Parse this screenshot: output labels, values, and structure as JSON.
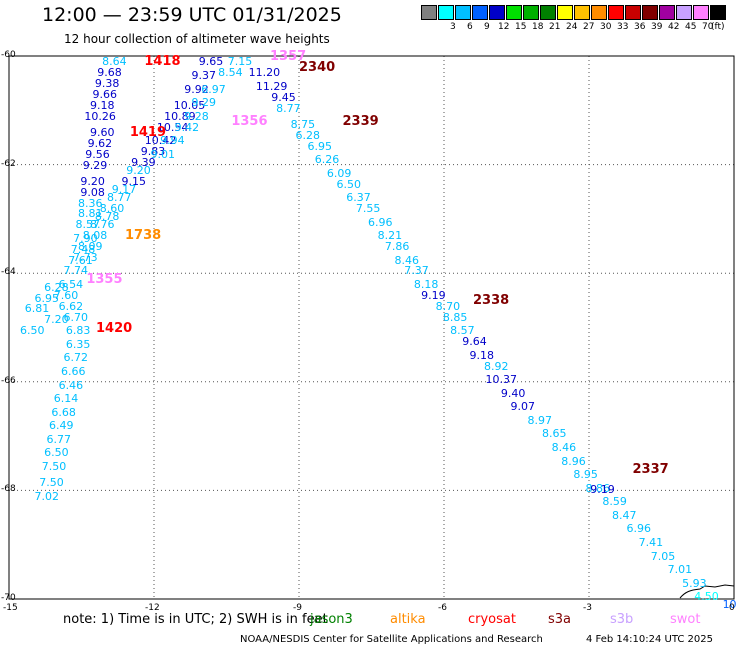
{
  "title": "12:00 — 23:59 UTC 01/31/2025",
  "subtitle": "12 hour collection of altimeter wave heights",
  "legend": {
    "unit": "(ft)",
    "bins": [
      {
        "label": "",
        "color": "#808080"
      },
      {
        "label": "3",
        "color": "#00ffff"
      },
      {
        "label": "6",
        "color": "#00bfff"
      },
      {
        "label": "9",
        "color": "#0060ff"
      },
      {
        "label": "12",
        "color": "#0000c8"
      },
      {
        "label": "15",
        "color": "#00e000"
      },
      {
        "label": "18",
        "color": "#00b000"
      },
      {
        "label": "21",
        "color": "#008000"
      },
      {
        "label": "24",
        "color": "#ffff00"
      },
      {
        "label": "27",
        "color": "#ffc000"
      },
      {
        "label": "30",
        "color": "#ff8c00"
      },
      {
        "label": "33",
        "color": "#ff0000"
      },
      {
        "label": "36",
        "color": "#c80000"
      },
      {
        "label": "39",
        "color": "#800000"
      },
      {
        "label": "42",
        "color": "#a000a0"
      },
      {
        "label": "45",
        "color": "#c8a0ff"
      },
      {
        "label": "70",
        "color": "#ff80ff"
      },
      {
        "label": "",
        "color": "#000000"
      }
    ]
  },
  "axes": {
    "lat_labels": [
      "-60",
      "-62",
      "-64",
      "-66",
      "-68",
      "-70"
    ],
    "lon_labels": [
      "-15",
      "-12",
      "-9",
      "-6",
      "-3",
      "0"
    ]
  },
  "note": "note: 1) Time is in UTC; 2) SWH is in feet",
  "satellites": [
    {
      "name": "jason3",
      "color": "#008000"
    },
    {
      "name": "altika",
      "color": "#ff8c00"
    },
    {
      "name": "cryosat",
      "color": "#ff0000"
    },
    {
      "name": "s3a",
      "color": "#800000"
    },
    {
      "name": "s3b",
      "color": "#c8a0ff"
    },
    {
      "name": "swot",
      "color": "#ff80ff"
    }
  ],
  "credit": "NOAA/NESDIS Center for Satellite Applications and Research",
  "timestamp": "4 Feb 14:10:24 UTC 2025",
  "pass_labels": [
    {
      "text": "1418",
      "color": "#ff0000",
      "lon": -12.2,
      "lat": -60.1
    },
    {
      "text": "1419",
      "color": "#ff0000",
      "lon": -12.5,
      "lat": -61.4
    },
    {
      "text": "1356",
      "color": "#ff80ff",
      "lon": -10.4,
      "lat": -61.2
    },
    {
      "text": "1738",
      "color": "#ff8c00",
      "lon": -12.6,
      "lat": -63.3
    },
    {
      "text": "1355",
      "color": "#ff80ff",
      "lon": -13.4,
      "lat": -64.1
    },
    {
      "text": "1420",
      "color": "#ff0000",
      "lon": -13.2,
      "lat": -65.0
    },
    {
      "text": "1357",
      "color": "#ff80ff",
      "lon": -9.6,
      "lat": -60.0
    },
    {
      "text": "2340",
      "color": "#800000",
      "lon": -9.0,
      "lat": -60.2
    },
    {
      "text": "2339",
      "color": "#800000",
      "lon": -8.1,
      "lat": -61.2
    },
    {
      "text": "2338",
      "color": "#800000",
      "lon": -5.4,
      "lat": -64.5
    },
    {
      "text": "2337",
      "color": "#800000",
      "lon": -2.1,
      "lat": -67.6
    }
  ],
  "tracks": [
    {
      "name": "track-1418",
      "points": [
        {
          "lon": -12.8,
          "lat": -60.1,
          "v": "8.64",
          "c": "#00bfff"
        },
        {
          "lon": -12.9,
          "lat": -60.3,
          "v": "9.68",
          "c": "#0000c8"
        },
        {
          "lon": -12.95,
          "lat": -60.5,
          "v": "9.38",
          "c": "#0000c8"
        },
        {
          "lon": -13.0,
          "lat": -60.7,
          "v": "9.66",
          "c": "#0000c8"
        },
        {
          "lon": -13.05,
          "lat": -60.9,
          "v": "9.18",
          "c": "#0000c8"
        },
        {
          "lon": -13.1,
          "lat": -61.1,
          "v": "10.26",
          "c": "#0000c8"
        },
        {
          "lon": -13.05,
          "lat": -61.4,
          "v": "9.60",
          "c": "#0000c8"
        },
        {
          "lon": -13.1,
          "lat": -61.6,
          "v": "9.62",
          "c": "#0000c8"
        },
        {
          "lon": -13.15,
          "lat": -61.8,
          "v": "9.56",
          "c": "#0000c8"
        },
        {
          "lon": -13.2,
          "lat": -62.0,
          "v": "9.29",
          "c": "#0000c8"
        },
        {
          "lon": -13.25,
          "lat": -62.3,
          "v": "9.20",
          "c": "#0000c8"
        },
        {
          "lon": -13.25,
          "lat": -62.5,
          "v": "9.08",
          "c": "#0000c8"
        },
        {
          "lon": -13.3,
          "lat": -62.7,
          "v": "8.36",
          "c": "#00bfff"
        },
        {
          "lon": -13.3,
          "lat": -62.9,
          "v": "8.81",
          "c": "#00bfff"
        },
        {
          "lon": -13.35,
          "lat": -63.1,
          "v": "8.57",
          "c": "#00bfff"
        },
        {
          "lon": -13.4,
          "lat": -63.35,
          "v": "7.90",
          "c": "#00bfff"
        },
        {
          "lon": -13.45,
          "lat": -63.55,
          "v": "7.48",
          "c": "#00bfff"
        },
        {
          "lon": -13.5,
          "lat": -63.75,
          "v": "7.61",
          "c": "#00bfff"
        },
        {
          "lon": -13.6,
          "lat": -63.95,
          "v": "7.74",
          "c": "#00bfff"
        },
        {
          "lon": -13.7,
          "lat": -64.2,
          "v": "6.54",
          "c": "#00bfff"
        },
        {
          "lon": -13.8,
          "lat": -64.4,
          "v": "7.60",
          "c": "#00bfff"
        },
        {
          "lon": -13.7,
          "lat": -64.6,
          "v": "6.62",
          "c": "#00bfff"
        },
        {
          "lon": -13.6,
          "lat": -64.8,
          "v": "6.70",
          "c": "#00bfff"
        },
        {
          "lon": -13.55,
          "lat": -65.05,
          "v": "6.83",
          "c": "#00bfff"
        },
        {
          "lon": -13.55,
          "lat": -65.3,
          "v": "6.35",
          "c": "#00bfff"
        },
        {
          "lon": -13.6,
          "lat": -65.55,
          "v": "6.72",
          "c": "#00bfff"
        },
        {
          "lon": -13.65,
          "lat": -65.8,
          "v": "6.66",
          "c": "#00bfff"
        },
        {
          "lon": -13.7,
          "lat": -66.05,
          "v": "6.46",
          "c": "#00bfff"
        },
        {
          "lon": -13.8,
          "lat": -66.3,
          "v": "6.14",
          "c": "#00bfff"
        },
        {
          "lon": -13.85,
          "lat": -66.55,
          "v": "6.68",
          "c": "#00bfff"
        },
        {
          "lon": -13.9,
          "lat": -66.8,
          "v": "6.49",
          "c": "#00bfff"
        },
        {
          "lon": -13.95,
          "lat": -67.05,
          "v": "6.77",
          "c": "#00bfff"
        },
        {
          "lon": -14.0,
          "lat": -67.3,
          "v": "6.50",
          "c": "#00bfff"
        },
        {
          "lon": -14.05,
          "lat": -67.55,
          "v": "7.50",
          "c": "#00bfff"
        },
        {
          "lon": -14.1,
          "lat": -67.85,
          "v": "7.50",
          "c": "#00bfff"
        },
        {
          "lon": -14.2,
          "lat": -68.1,
          "v": "7.02",
          "c": "#00bfff"
        }
      ]
    },
    {
      "name": "track-1355",
      "points": [
        {
          "lon": -14.0,
          "lat": -64.25,
          "v": "6.28",
          "c": "#00bfff"
        },
        {
          "lon": -14.2,
          "lat": -64.45,
          "v": "6.95",
          "c": "#00bfff"
        },
        {
          "lon": -14.4,
          "lat": -64.65,
          "v": "6.81",
          "c": "#00bfff"
        },
        {
          "lon": -14.0,
          "lat": -64.85,
          "v": "7.20",
          "c": "#00bfff"
        },
        {
          "lon": -14.5,
          "lat": -65.05,
          "v": "6.50",
          "c": "#00bfff"
        }
      ]
    },
    {
      "name": "track-1419",
      "points": [
        {
          "lon": -12.7,
          "lat": -62.6,
          "v": "8.77",
          "c": "#00bfff"
        },
        {
          "lon": -12.85,
          "lat": -62.8,
          "v": "8.60",
          "c": "#00bfff"
        },
        {
          "lon": -12.95,
          "lat": -62.95,
          "v": "8.78",
          "c": "#00bfff"
        },
        {
          "lon": -13.05,
          "lat": -63.1,
          "v": "8.76",
          "c": "#00bfff"
        },
        {
          "lon": -13.2,
          "lat": -63.3,
          "v": "8.08",
          "c": "#00bfff"
        },
        {
          "lon": -13.3,
          "lat": -63.5,
          "v": "8.09",
          "c": "#00bfff"
        },
        {
          "lon": -13.4,
          "lat": -63.7,
          "v": "7.73",
          "c": "#00bfff"
        },
        {
          "lon": -12.6,
          "lat": -62.45,
          "v": "9.17",
          "c": "#00bfff"
        },
        {
          "lon": -12.4,
          "lat": -62.3,
          "v": "9.15",
          "c": "#0000c8"
        },
        {
          "lon": -12.3,
          "lat": -62.1,
          "v": "9.20",
          "c": "#00bfff"
        },
        {
          "lon": -12.2,
          "lat": -61.95,
          "v": "9.39",
          "c": "#0000c8"
        },
        {
          "lon": -12.0,
          "lat": -61.75,
          "v": "9.83",
          "c": "#0000c8"
        },
        {
          "lon": -11.85,
          "lat": -61.55,
          "v": "10.42",
          "c": "#0000c8"
        },
        {
          "lon": -11.6,
          "lat": -61.3,
          "v": "10.54",
          "c": "#0000c8"
        },
        {
          "lon": -11.45,
          "lat": -61.1,
          "v": "10.89",
          "c": "#0000c8"
        },
        {
          "lon": -11.25,
          "lat": -60.9,
          "v": "10.05",
          "c": "#0000c8"
        },
        {
          "lon": -11.1,
          "lat": -60.6,
          "v": "9.92",
          "c": "#0000c8"
        },
        {
          "lon": -10.95,
          "lat": -60.35,
          "v": "9.37",
          "c": "#0000c8"
        },
        {
          "lon": -10.8,
          "lat": -60.1,
          "v": "9.65",
          "c": "#0000c8"
        }
      ]
    },
    {
      "name": "track-1356",
      "points": [
        {
          "lon": -11.8,
          "lat": -61.8,
          "v": "9.01",
          "c": "#00bfff"
        },
        {
          "lon": -11.6,
          "lat": -61.55,
          "v": "9.94",
          "c": "#00bfff"
        },
        {
          "lon": -11.3,
          "lat": -61.3,
          "v": "9.42",
          "c": "#00bfff"
        },
        {
          "lon": -11.1,
          "lat": -61.1,
          "v": "9.28",
          "c": "#00bfff"
        },
        {
          "lon": -10.95,
          "lat": -60.85,
          "v": "9.29",
          "c": "#00bfff"
        },
        {
          "lon": -10.75,
          "lat": -60.6,
          "v": "6.97",
          "c": "#00bfff"
        },
        {
          "lon": -10.4,
          "lat": -60.3,
          "v": "8.54",
          "c": "#00bfff"
        },
        {
          "lon": -10.2,
          "lat": -60.1,
          "v": "7.15",
          "c": "#00bfff"
        }
      ]
    },
    {
      "name": "track-2340",
      "points": [
        {
          "lon": -9.7,
          "lat": -60.3,
          "v": "11.20",
          "c": "#0000c8"
        },
        {
          "lon": -9.55,
          "lat": -60.55,
          "v": "11.29",
          "c": "#0000c8"
        },
        {
          "lon": -9.3,
          "lat": -60.75,
          "v": "9.45",
          "c": "#0000c8"
        },
        {
          "lon": -9.2,
          "lat": -60.95,
          "v": "8.77",
          "c": "#00bfff"
        },
        {
          "lon": -8.9,
          "lat": -61.25,
          "v": "8.75",
          "c": "#00bfff"
        },
        {
          "lon": -8.8,
          "lat": -61.45,
          "v": "6.28",
          "c": "#00bfff"
        },
        {
          "lon": -8.55,
          "lat": -61.65,
          "v": "6.95",
          "c": "#00bfff"
        },
        {
          "lon": -8.4,
          "lat": -61.9,
          "v": "6.26",
          "c": "#00bfff"
        },
        {
          "lon": -8.15,
          "lat": -62.15,
          "v": "6.09",
          "c": "#00bfff"
        },
        {
          "lon": -7.95,
          "lat": -62.35,
          "v": "6.50",
          "c": "#00bfff"
        },
        {
          "lon": -7.75,
          "lat": -62.6,
          "v": "6.37",
          "c": "#00bfff"
        },
        {
          "lon": -7.55,
          "lat": -62.8,
          "v": "7.55",
          "c": "#00bfff"
        },
        {
          "lon": -7.3,
          "lat": -63.05,
          "v": "6.96",
          "c": "#00bfff"
        },
        {
          "lon": -7.1,
          "lat": -63.3,
          "v": "8.21",
          "c": "#00bfff"
        },
        {
          "lon": -6.95,
          "lat": -63.5,
          "v": "7.86",
          "c": "#00bfff"
        },
        {
          "lon": -6.75,
          "lat": -63.75,
          "v": "8.46",
          "c": "#00bfff"
        },
        {
          "lon": -6.55,
          "lat": -63.95,
          "v": "7.37",
          "c": "#00bfff"
        },
        {
          "lon": -6.35,
          "lat": -64.2,
          "v": "8.18",
          "c": "#00bfff"
        },
        {
          "lon": -6.2,
          "lat": -64.4,
          "v": "9.19",
          "c": "#0000c8"
        },
        {
          "lon": -5.9,
          "lat": -64.6,
          "v": "8.70",
          "c": "#00bfff"
        },
        {
          "lon": -5.75,
          "lat": -64.8,
          "v": "8.85",
          "c": "#00bfff"
        },
        {
          "lon": -5.6,
          "lat": -65.05,
          "v": "8.57",
          "c": "#00bfff"
        },
        {
          "lon": -5.35,
          "lat": -65.25,
          "v": "9.64",
          "c": "#0000c8"
        },
        {
          "lon": -5.2,
          "lat": -65.5,
          "v": "9.18",
          "c": "#0000c8"
        },
        {
          "lon": -4.9,
          "lat": -65.7,
          "v": "8.92",
          "c": "#00bfff"
        },
        {
          "lon": -4.8,
          "lat": -65.95,
          "v": "10.37",
          "c": "#0000c8"
        },
        {
          "lon": -4.55,
          "lat": -66.2,
          "v": "9.40",
          "c": "#0000c8"
        },
        {
          "lon": -4.35,
          "lat": -66.45,
          "v": "9.07",
          "c": "#0000c8"
        },
        {
          "lon": -4.0,
          "lat": -66.7,
          "v": "8.97",
          "c": "#00bfff"
        },
        {
          "lon": -3.7,
          "lat": -66.95,
          "v": "8.65",
          "c": "#00bfff"
        },
        {
          "lon": -3.5,
          "lat": -67.2,
          "v": "8.46",
          "c": "#00bfff"
        },
        {
          "lon": -3.3,
          "lat": -67.45,
          "v": "8.96",
          "c": "#00bfff"
        },
        {
          "lon": -3.05,
          "lat": -67.7,
          "v": "8.95",
          "c": "#00bfff"
        },
        {
          "lon": -2.8,
          "lat": -67.95,
          "v": "8.86",
          "c": "#00bfff"
        },
        {
          "lon": -2.7,
          "lat": -67.98,
          "v": "9.19",
          "c": "#0000c8"
        },
        {
          "lon": -2.45,
          "lat": -68.2,
          "v": "8.59",
          "c": "#00bfff"
        },
        {
          "lon": -2.25,
          "lat": -68.45,
          "v": "8.47",
          "c": "#00bfff"
        },
        {
          "lon": -1.95,
          "lat": -68.7,
          "v": "6.96",
          "c": "#00bfff"
        },
        {
          "lon": -1.7,
          "lat": -68.95,
          "v": "7.41",
          "c": "#00bfff"
        },
        {
          "lon": -1.45,
          "lat": -69.2,
          "v": "7.05",
          "c": "#00bfff"
        },
        {
          "lon": -1.1,
          "lat": -69.45,
          "v": "7.01",
          "c": "#00bfff"
        },
        {
          "lon": -0.8,
          "lat": -69.7,
          "v": "5.93",
          "c": "#00bfff"
        },
        {
          "lon": -0.55,
          "lat": -69.95,
          "v": "4.50",
          "c": "#00ffff"
        },
        {
          "lon": -0.1,
          "lat": -70.1,
          "v": "10",
          "c": "#0060ff"
        }
      ]
    }
  ]
}
